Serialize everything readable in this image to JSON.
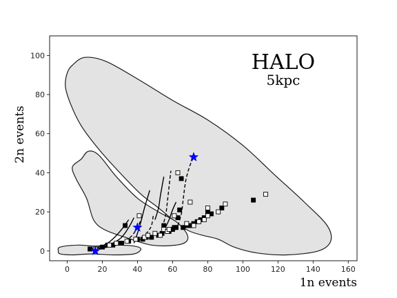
{
  "chart_data": {
    "type": "scatter",
    "title": "HALO",
    "subtitle": "5kpc",
    "xlabel": "1n events",
    "ylabel": "2n events",
    "xlim": [
      -10,
      165
    ],
    "ylim": [
      -5,
      110
    ],
    "xticks": [
      0,
      20,
      40,
      60,
      80,
      100,
      120,
      140,
      160
    ],
    "yticks": [
      0,
      20,
      40,
      60,
      80,
      100
    ],
    "grid": false,
    "region_fill": "#e3e3e3",
    "region_stroke": "#1a1a1a",
    "star_color": "#0000ff",
    "regions": [
      {
        "points": [
          [
            3,
            95
          ],
          [
            10,
            99
          ],
          [
            22,
            97
          ],
          [
            40,
            88
          ],
          [
            60,
            77
          ],
          [
            80,
            67
          ],
          [
            100,
            54
          ],
          [
            118,
            39
          ],
          [
            135,
            25
          ],
          [
            148,
            13
          ],
          [
            150,
            5
          ],
          [
            143,
            0
          ],
          [
            125,
            -2
          ],
          [
            108,
            -1
          ],
          [
            95,
            2
          ],
          [
            86,
            6
          ],
          [
            77,
            8
          ],
          [
            70,
            10
          ],
          [
            66,
            12
          ],
          [
            60,
            16
          ],
          [
            52,
            22
          ],
          [
            42,
            29
          ],
          [
            30,
            40
          ],
          [
            18,
            52
          ],
          [
            8,
            64
          ],
          [
            2,
            75
          ],
          [
            -1,
            84
          ],
          [
            0,
            91
          ]
        ]
      },
      {
        "points": [
          [
            8,
            47
          ],
          [
            12,
            51
          ],
          [
            18,
            49
          ],
          [
            28,
            38
          ],
          [
            40,
            27
          ],
          [
            52,
            20
          ],
          [
            62,
            15
          ],
          [
            68,
            9
          ],
          [
            68,
            5
          ],
          [
            62,
            3
          ],
          [
            48,
            3
          ],
          [
            33,
            7
          ],
          [
            21,
            11
          ],
          [
            15,
            16
          ],
          [
            11,
            27
          ],
          [
            5,
            37
          ],
          [
            3,
            43
          ]
        ]
      },
      {
        "points": [
          [
            -4,
            2
          ],
          [
            6,
            3
          ],
          [
            16,
            2.5
          ],
          [
            28,
            3
          ],
          [
            38,
            2.5
          ],
          [
            42,
            1
          ],
          [
            38,
            -1.5
          ],
          [
            26,
            -2
          ],
          [
            14,
            -1.5
          ],
          [
            3,
            -2
          ],
          [
            -4,
            -1.5
          ],
          [
            -5,
            0
          ]
        ]
      }
    ],
    "curves": [
      {
        "style": "solid",
        "points": [
          [
            13,
            1
          ],
          [
            18,
            2
          ],
          [
            23,
            4
          ],
          [
            27,
            7
          ],
          [
            31,
            11
          ],
          [
            35,
            16
          ]
        ]
      },
      {
        "style": "solid",
        "points": [
          [
            16,
            1
          ],
          [
            21,
            2
          ],
          [
            26,
            4
          ],
          [
            31,
            7
          ],
          [
            35,
            12
          ],
          [
            38,
            17
          ]
        ]
      },
      {
        "style": "dashed",
        "points": [
          [
            18,
            1
          ],
          [
            23,
            2
          ],
          [
            28,
            3
          ],
          [
            33,
            5
          ],
          [
            37,
            8
          ],
          [
            40,
            12
          ],
          [
            42,
            16
          ]
        ]
      },
      {
        "style": "solid",
        "points": [
          [
            38,
            4
          ],
          [
            40,
            9
          ],
          [
            42,
            15
          ],
          [
            44,
            22
          ],
          [
            46,
            28
          ],
          [
            47,
            31
          ]
        ]
      },
      {
        "style": "dashed",
        "points": [
          [
            40,
            5
          ],
          [
            43,
            7
          ],
          [
            46,
            10
          ],
          [
            48,
            13
          ],
          [
            49,
            18
          ]
        ]
      },
      {
        "style": "solid",
        "points": [
          [
            50,
            16
          ],
          [
            52,
            22
          ],
          [
            53,
            28
          ],
          [
            54,
            33
          ],
          [
            55,
            38
          ]
        ]
      },
      {
        "style": "dashed",
        "points": [
          [
            54,
            12
          ],
          [
            56,
            18
          ],
          [
            57,
            25
          ],
          [
            58,
            33
          ],
          [
            59,
            41
          ]
        ]
      },
      {
        "style": "solid",
        "points": [
          [
            55,
            9
          ],
          [
            56,
            12
          ],
          [
            58,
            16
          ],
          [
            60,
            21
          ],
          [
            62,
            25
          ]
        ]
      },
      {
        "style": "dashed",
        "points": [
          [
            63,
            13
          ],
          [
            65,
            19
          ],
          [
            66,
            26
          ],
          [
            67,
            33
          ],
          [
            68,
            38
          ],
          [
            70,
            44
          ],
          [
            72,
            48
          ]
        ]
      }
    ],
    "series": [
      {
        "marker": "filled-square",
        "points": [
          [
            13,
            1
          ],
          [
            20,
            2
          ],
          [
            23,
            3
          ],
          [
            26,
            3
          ],
          [
            30,
            4
          ],
          [
            31,
            4
          ],
          [
            33,
            13
          ],
          [
            35,
            5
          ],
          [
            40,
            6
          ],
          [
            43,
            6
          ],
          [
            45,
            7
          ],
          [
            48,
            7
          ],
          [
            52,
            8
          ],
          [
            54,
            9
          ],
          [
            55,
            13
          ],
          [
            57,
            10
          ],
          [
            58,
            10
          ],
          [
            60,
            11
          ],
          [
            61,
            12
          ],
          [
            62,
            12
          ],
          [
            63,
            17
          ],
          [
            64,
            21
          ],
          [
            65,
            37
          ],
          [
            66,
            12
          ],
          [
            68,
            13
          ],
          [
            70,
            13
          ],
          [
            72,
            14
          ],
          [
            74,
            15
          ],
          [
            76,
            16
          ],
          [
            78,
            17
          ],
          [
            80,
            20
          ],
          [
            82,
            19
          ],
          [
            88,
            22
          ],
          [
            106,
            26
          ]
        ]
      },
      {
        "marker": "open-square",
        "points": [
          [
            16,
            1
          ],
          [
            24,
            3
          ],
          [
            28,
            4
          ],
          [
            34,
            5
          ],
          [
            39,
            6
          ],
          [
            41,
            18
          ],
          [
            44,
            7
          ],
          [
            46,
            8
          ],
          [
            50,
            9
          ],
          [
            53,
            8
          ],
          [
            55,
            11
          ],
          [
            57,
            10
          ],
          [
            58,
            11
          ],
          [
            61,
            18
          ],
          [
            63,
            40
          ],
          [
            68,
            14
          ],
          [
            70,
            25
          ],
          [
            72,
            13
          ],
          [
            75,
            15
          ],
          [
            78,
            16
          ],
          [
            80,
            22
          ],
          [
            80,
            18
          ],
          [
            86,
            20
          ],
          [
            90,
            24
          ],
          [
            113,
            29
          ]
        ]
      },
      {
        "marker": "star",
        "points": [
          [
            16,
            0
          ],
          [
            40,
            12
          ],
          [
            72,
            48
          ]
        ]
      }
    ]
  }
}
